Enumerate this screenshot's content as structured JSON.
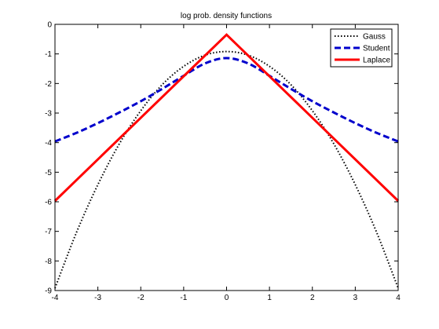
{
  "chart_data": {
    "type": "line",
    "title": "log prob. density functions",
    "xlabel": "",
    "ylabel": "",
    "xlim": [
      -4,
      4
    ],
    "ylim": [
      -9,
      0
    ],
    "xticks": [
      -4,
      -3,
      -2,
      -1,
      0,
      1,
      2,
      3,
      4
    ],
    "yticks": [
      -9,
      -8,
      -7,
      -6,
      -5,
      -4,
      -3,
      -2,
      -1,
      0
    ],
    "grid": false,
    "legend_position": "top-right",
    "series": [
      {
        "name": "Gauss",
        "color": "#000000",
        "style": "dotted",
        "x": [
          -4,
          -3.5,
          -3,
          -2.5,
          -2,
          -1.5,
          -1,
          -0.5,
          0,
          0.5,
          1,
          1.5,
          2,
          2.5,
          3,
          3.5,
          4
        ],
        "y": [
          -8.92,
          -7.04,
          -5.42,
          -4.04,
          -2.92,
          -2.04,
          -1.42,
          -1.04,
          -0.92,
          -1.04,
          -1.42,
          -2.04,
          -2.92,
          -4.04,
          -5.42,
          -7.04,
          -8.92
        ]
      },
      {
        "name": "Student",
        "color": "#0000cc",
        "style": "dashed",
        "x": [
          -4,
          -3.5,
          -3,
          -2.5,
          -2,
          -1.5,
          -1,
          -0.5,
          0,
          0.5,
          1,
          1.5,
          2,
          2.5,
          3,
          3.5,
          4
        ],
        "y": [
          -3.96,
          -3.67,
          -3.34,
          -2.98,
          -2.6,
          -2.18,
          -1.74,
          -1.32,
          -1.14,
          -1.32,
          -1.74,
          -2.18,
          -2.6,
          -2.98,
          -3.34,
          -3.67,
          -3.96
        ]
      },
      {
        "name": "Laplace",
        "color": "#ff0000",
        "style": "solid",
        "x": [
          -4,
          0,
          4
        ],
        "y": [
          -5.97,
          -0.35,
          -5.97
        ]
      }
    ]
  }
}
